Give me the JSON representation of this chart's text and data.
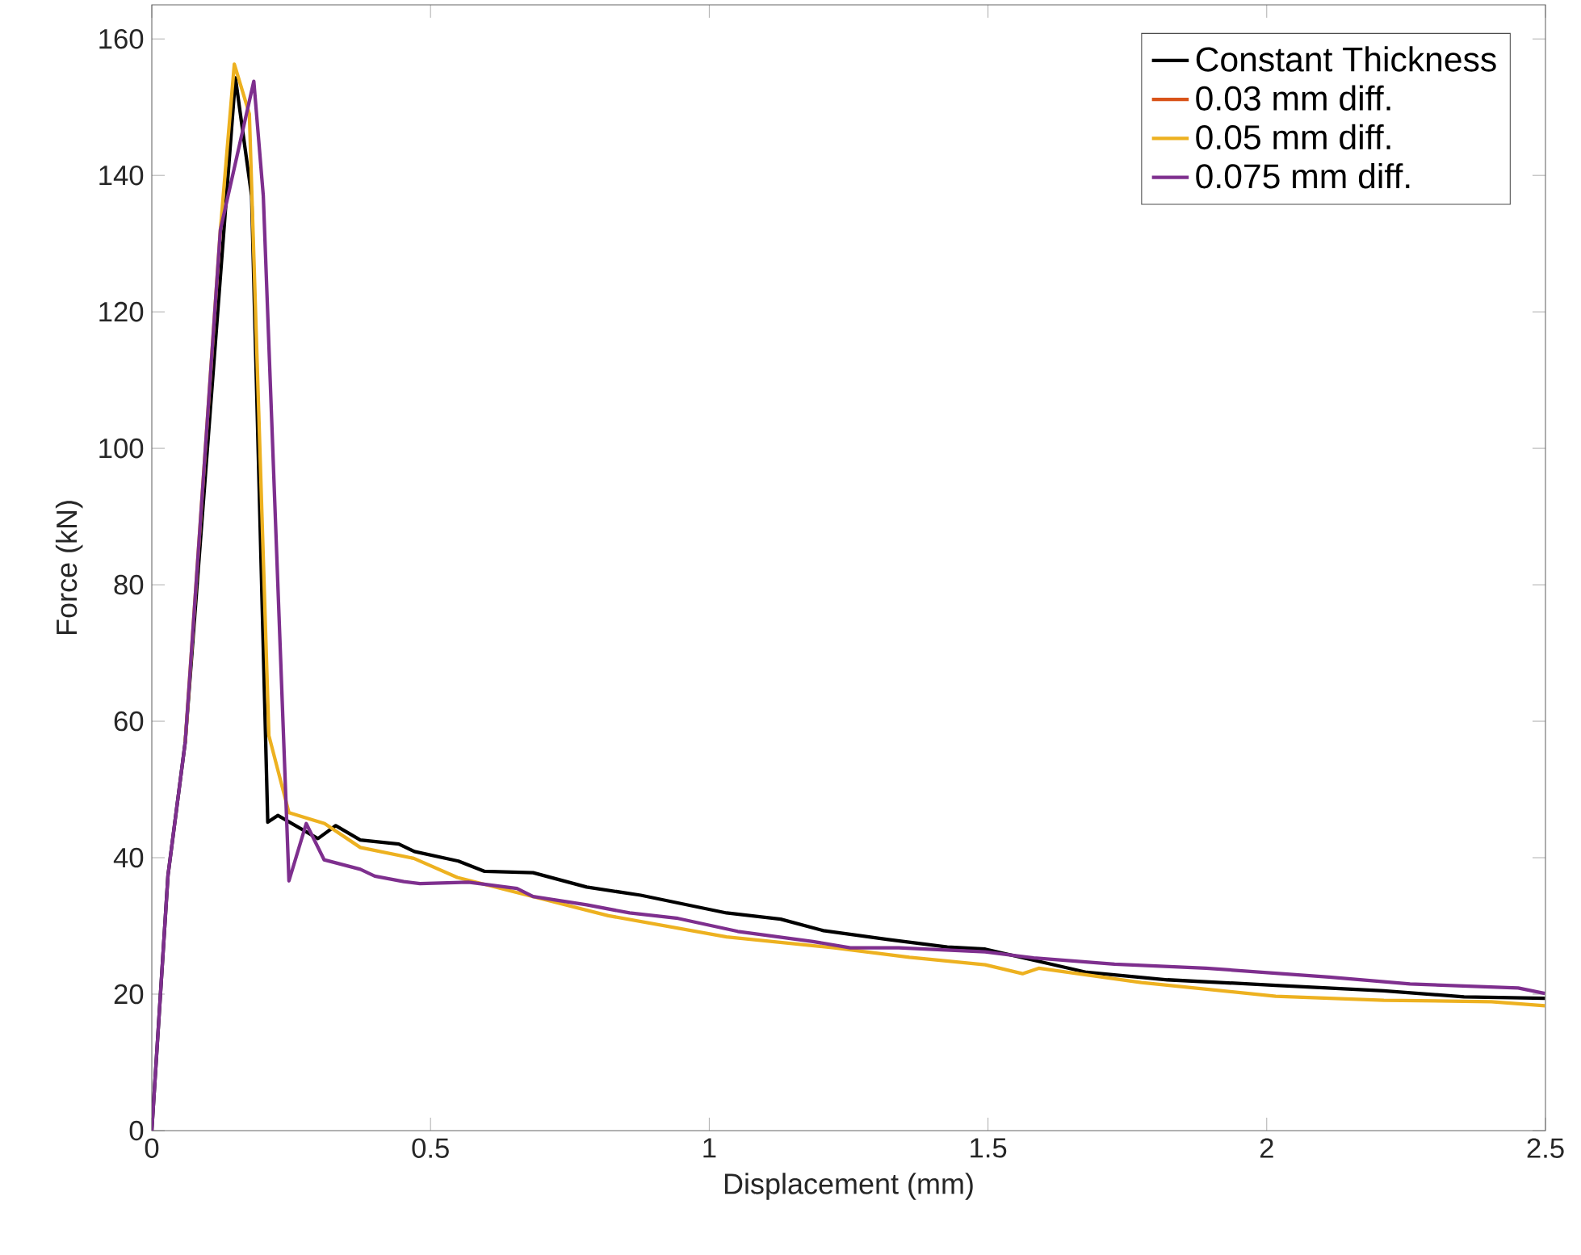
{
  "chart_data": {
    "type": "line",
    "xlabel": "Displacement (mm)",
    "ylabel": "Force (kN)",
    "xlim": [
      0,
      2.5
    ],
    "ylim": [
      0,
      165
    ],
    "xticks": [
      0,
      0.5,
      1,
      1.5,
      2,
      2.5
    ],
    "yticks": [
      0,
      20,
      40,
      60,
      80,
      100,
      120,
      140,
      160
    ],
    "legend": "top right",
    "line_style": "solid",
    "series": [
      {
        "name": "Constant Thickness",
        "color": "#000000",
        "x": [
          0,
          0.029,
          0.06,
          0.15,
          0.179,
          0.208,
          0.226,
          0.298,
          0.33,
          0.374,
          0.443,
          0.471,
          0.55,
          0.597,
          0.684,
          0.78,
          0.877,
          1.031,
          1.128,
          1.205,
          1.321,
          1.427,
          1.495,
          1.677,
          1.822,
          2.016,
          2.21,
          2.354,
          2.499
        ],
        "values": [
          0,
          37.4,
          57,
          154.3,
          137,
          45.2,
          46.2,
          42.8,
          44.7,
          42.6,
          42,
          40.9,
          39.5,
          38,
          37.8,
          35.7,
          34.5,
          31.9,
          31,
          29.3,
          28,
          26.9,
          26.6,
          23.2,
          22.1,
          21.3,
          20.5,
          19.6,
          19.4
        ]
      },
      {
        "name": "0.03 mm diff.",
        "color": "#d95319",
        "values": [
          null
        ]
      },
      {
        "name": "0.05 mm diff.",
        "color": "#edb120",
        "x": [
          0.06,
          0.123,
          0.148,
          0.175,
          0.21,
          0.246,
          0.31,
          0.374,
          0.47,
          0.548,
          0.664,
          0.819,
          1.031,
          1.224,
          1.359,
          1.495,
          1.562,
          1.591,
          1.775,
          2.016,
          2.21,
          2.403,
          2.499
        ],
        "values": [
          57,
          132,
          156.3,
          149,
          57.9,
          46.6,
          45,
          41.5,
          39.9,
          37.1,
          34.7,
          31.5,
          28.4,
          26.8,
          25.4,
          24.3,
          23,
          23.8,
          21.7,
          19.7,
          19.1,
          18.9,
          18.3
        ]
      },
      {
        "name": "0.075 mm diff.",
        "color": "#7e2f8e",
        "x": [
          0,
          0.029,
          0.06,
          0.123,
          0.183,
          0.2,
          0.246,
          0.277,
          0.309,
          0.374,
          0.4,
          0.452,
          0.481,
          0.568,
          0.655,
          0.684,
          0.78,
          0.857,
          0.944,
          1.051,
          1.186,
          1.253,
          1.34,
          1.495,
          1.582,
          1.727,
          1.891,
          2.112,
          2.257,
          2.451,
          2.499
        ],
        "values": [
          0,
          37.4,
          57,
          132,
          153.8,
          137,
          36.6,
          45,
          39.7,
          38.3,
          37.3,
          36.5,
          36.2,
          36.4,
          35.5,
          34.3,
          33.1,
          31.9,
          31.1,
          29.2,
          27.7,
          26.8,
          26.8,
          26.2,
          25.3,
          24.4,
          23.8,
          22.5,
          21.5,
          20.9,
          20.1
        ]
      }
    ]
  }
}
